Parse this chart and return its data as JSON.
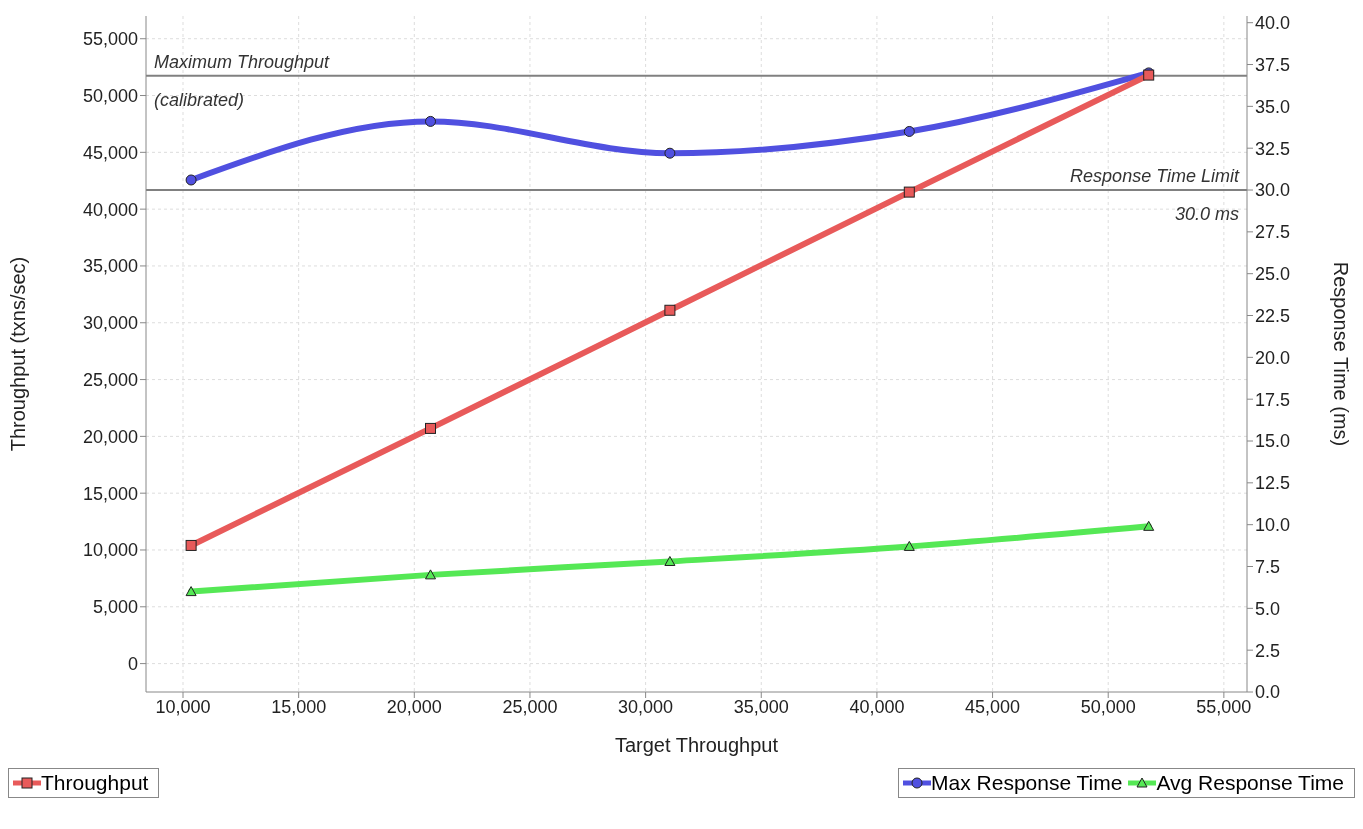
{
  "chart_data": {
    "type": "line",
    "xlabel": "Target Throughput",
    "ylabel": "Throughput (txns/sec)",
    "y2label": "Response Time (ms)",
    "x": [
      10350,
      20700,
      31050,
      41400,
      51750
    ],
    "series": [
      {
        "name": "Throughput",
        "color": "#e85a5a",
        "marker": "square",
        "values": [
          10400,
          20700,
          31100,
          41500,
          51800
        ]
      },
      {
        "name": "Max Response Time",
        "color": "#5050e0",
        "marker": "circle",
        "axis": "y2",
        "values": [
          30.6,
          34.1,
          32.2,
          33.5,
          37.0
        ]
      },
      {
        "name": "Avg Response Time",
        "color": "#55e855",
        "marker": "triangle",
        "axis": "y2",
        "values": [
          6.0,
          7.0,
          7.8,
          8.7,
          9.9
        ]
      }
    ],
    "xlim": [
      8400,
      56000
    ],
    "xticks": [
      {
        "value": 10000,
        "label": "10,000"
      },
      {
        "value": 15000,
        "label": "15,000"
      },
      {
        "value": 20000,
        "label": "20,000"
      },
      {
        "value": 25000,
        "label": "25,000"
      },
      {
        "value": 30000,
        "label": "30,000"
      },
      {
        "value": 35000,
        "label": "35,000"
      },
      {
        "value": 40000,
        "label": "40,000"
      },
      {
        "value": 45000,
        "label": "45,000"
      },
      {
        "value": 50000,
        "label": "50,000"
      },
      {
        "value": 55000,
        "label": "55,000"
      }
    ],
    "ylim": [
      -2500,
      57000
    ],
    "yticks": [
      0,
      {
        "value": 5000,
        "label": "5,000"
      },
      {
        "value": 10000,
        "label": "10,000"
      },
      {
        "value": 15000,
        "label": "15,000"
      },
      {
        "value": 20000,
        "label": "20,000"
      },
      {
        "value": 25000,
        "label": "25,000"
      },
      {
        "value": 30000,
        "label": "30,000"
      },
      {
        "value": 35000,
        "label": "35,000"
      },
      {
        "value": 40000,
        "label": "40,000"
      },
      {
        "value": 45000,
        "label": "45,000"
      },
      {
        "value": 50000,
        "label": "50,000"
      },
      {
        "value": 55000,
        "label": "55,000"
      }
    ],
    "y2lim": [
      0,
      40.4
    ],
    "y2ticks": [
      {
        "value": 0,
        "label": "0.0"
      },
      {
        "value": 2.5,
        "label": "2.5"
      },
      {
        "value": 5,
        "label": "5.0"
      },
      {
        "value": 7.5,
        "label": "7.5"
      },
      {
        "value": 10,
        "label": "10.0"
      },
      {
        "value": 12.5,
        "label": "12.5"
      },
      {
        "value": 15,
        "label": "15.0"
      },
      {
        "value": 17.5,
        "label": "17.5"
      },
      {
        "value": 20,
        "label": "20.0"
      },
      {
        "value": 22.5,
        "label": "22.5"
      },
      {
        "value": 25,
        "label": "25.0"
      },
      {
        "value": 27.5,
        "label": "27.5"
      },
      {
        "value": 30,
        "label": "30.0"
      },
      {
        "value": 32.5,
        "label": "32.5"
      },
      {
        "value": 35,
        "label": "35.0"
      },
      {
        "value": 37.5,
        "label": "37.5"
      },
      {
        "value": 40,
        "label": "40.0"
      }
    ],
    "ref_lines": [
      {
        "axis": "y",
        "value": 51750,
        "label": "Maximum Throughput\n(calibrated)",
        "color": "#808080"
      },
      {
        "axis": "y2",
        "value": 30,
        "label": "Response Time Limit\n30.0 ms",
        "color": "#808080"
      }
    ],
    "grid": true,
    "legend": "bottom",
    "line_style": "solid"
  }
}
